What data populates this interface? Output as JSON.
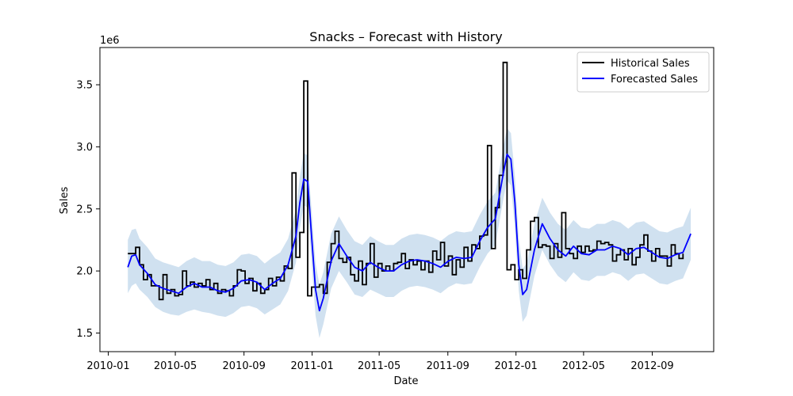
{
  "chart_data": {
    "type": "line",
    "title": "Snacks – Forecast with History",
    "xlabel": "Date",
    "ylabel": "Sales",
    "y_offset_label": "1e6",
    "xlim": [
      "2009-12-17",
      "2012-12-20"
    ],
    "ylim": [
      1.35,
      3.8
    ],
    "x_ticks": [
      {
        "date": "2010-01-01",
        "label": "2010-01"
      },
      {
        "date": "2010-05-01",
        "label": "2010-05"
      },
      {
        "date": "2010-09-01",
        "label": "2010-09"
      },
      {
        "date": "2011-01-01",
        "label": "2011-01"
      },
      {
        "date": "2011-05-01",
        "label": "2011-05"
      },
      {
        "date": "2011-09-01",
        "label": "2011-09"
      },
      {
        "date": "2012-01-01",
        "label": "2012-01"
      },
      {
        "date": "2012-05-01",
        "label": "2012-05"
      },
      {
        "date": "2012-09-01",
        "label": "2012-09"
      }
    ],
    "y_ticks": [
      1.5,
      2.0,
      2.5,
      3.0,
      3.5
    ],
    "legend": {
      "position": "top-right",
      "entries": [
        "Historical Sales",
        "Forecasted Sales"
      ]
    },
    "colors": {
      "historical": "#000000",
      "forecast": "#0000ff",
      "band": "#bcd4ea"
    },
    "series": [
      {
        "name": "Historical Sales",
        "style": "step",
        "x": [
          "2010-02-05",
          "2010-02-12",
          "2010-02-19",
          "2010-02-26",
          "2010-03-05",
          "2010-03-12",
          "2010-03-19",
          "2010-03-26",
          "2010-04-02",
          "2010-04-09",
          "2010-04-16",
          "2010-04-23",
          "2010-04-30",
          "2010-05-07",
          "2010-05-14",
          "2010-05-21",
          "2010-05-28",
          "2010-06-04",
          "2010-06-11",
          "2010-06-18",
          "2010-06-25",
          "2010-07-02",
          "2010-07-09",
          "2010-07-16",
          "2010-07-23",
          "2010-07-30",
          "2010-08-06",
          "2010-08-13",
          "2010-08-20",
          "2010-08-27",
          "2010-09-03",
          "2010-09-10",
          "2010-09-17",
          "2010-09-24",
          "2010-10-01",
          "2010-10-08",
          "2010-10-15",
          "2010-10-22",
          "2010-10-29",
          "2010-11-05",
          "2010-11-12",
          "2010-11-19",
          "2010-11-26",
          "2010-12-03",
          "2010-12-10",
          "2010-12-17",
          "2010-12-24",
          "2010-12-31",
          "2011-01-07",
          "2011-01-14",
          "2011-01-21",
          "2011-01-28",
          "2011-02-04",
          "2011-02-11",
          "2011-02-18",
          "2011-02-25",
          "2011-03-04",
          "2011-03-11",
          "2011-03-18",
          "2011-03-25",
          "2011-04-01",
          "2011-04-08",
          "2011-04-15",
          "2011-04-22",
          "2011-04-29",
          "2011-05-06",
          "2011-05-13",
          "2011-05-20",
          "2011-05-27",
          "2011-06-03",
          "2011-06-10",
          "2011-06-17",
          "2011-06-24",
          "2011-07-01",
          "2011-07-08",
          "2011-07-15",
          "2011-07-22",
          "2011-07-29",
          "2011-08-05",
          "2011-08-12",
          "2011-08-19",
          "2011-08-26",
          "2011-09-02",
          "2011-09-09",
          "2011-09-16",
          "2011-09-23",
          "2011-09-30",
          "2011-10-07",
          "2011-10-14",
          "2011-10-21",
          "2011-10-28",
          "2011-11-04",
          "2011-11-11",
          "2011-11-18",
          "2011-11-25",
          "2011-12-02",
          "2011-12-09",
          "2011-12-16",
          "2011-12-23",
          "2011-12-30",
          "2012-01-06",
          "2012-01-13",
          "2012-01-20",
          "2012-01-27",
          "2012-02-03",
          "2012-02-10",
          "2012-02-17",
          "2012-02-24",
          "2012-03-02",
          "2012-03-09",
          "2012-03-16",
          "2012-03-23",
          "2012-03-30",
          "2012-04-06",
          "2012-04-13",
          "2012-04-20",
          "2012-04-27",
          "2012-05-04",
          "2012-05-11",
          "2012-05-18",
          "2012-05-25",
          "2012-06-01",
          "2012-06-08",
          "2012-06-15",
          "2012-06-22",
          "2012-06-29",
          "2012-07-06",
          "2012-07-13",
          "2012-07-20",
          "2012-07-27",
          "2012-08-03",
          "2012-08-10",
          "2012-08-17",
          "2012-08-24",
          "2012-08-31",
          "2012-09-07",
          "2012-09-14",
          "2012-09-21",
          "2012-09-28",
          "2012-10-05",
          "2012-10-12",
          "2012-10-19",
          "2012-10-26"
        ],
        "values": [
          2.14,
          2.14,
          2.19,
          2.05,
          1.93,
          1.97,
          1.88,
          1.88,
          1.77,
          1.97,
          1.82,
          1.85,
          1.8,
          1.81,
          2.0,
          1.88,
          1.91,
          1.87,
          1.9,
          1.88,
          1.93,
          1.85,
          1.9,
          1.82,
          1.85,
          1.84,
          1.8,
          1.88,
          2.01,
          2.0,
          1.9,
          1.94,
          1.84,
          1.9,
          1.82,
          1.85,
          1.94,
          1.88,
          1.95,
          1.92,
          2.04,
          2.02,
          2.79,
          2.11,
          2.31,
          3.53,
          1.8,
          1.87,
          1.87,
          1.89,
          1.82,
          2.07,
          2.22,
          2.32,
          2.1,
          2.07,
          2.11,
          1.97,
          1.92,
          2.08,
          1.89,
          2.06,
          2.22,
          1.95,
          2.06,
          2.0,
          2.04,
          2.0,
          2.06,
          2.07,
          2.14,
          2.02,
          2.09,
          2.05,
          2.08,
          2.01,
          2.08,
          1.99,
          2.16,
          2.09,
          2.23,
          2.04,
          2.12,
          1.97,
          2.09,
          2.03,
          2.19,
          2.08,
          2.21,
          2.18,
          2.28,
          2.29,
          3.01,
          2.18,
          2.51,
          2.77,
          3.68,
          2.01,
          2.05,
          1.93,
          2.01,
          1.94,
          2.17,
          2.4,
          2.43,
          2.19,
          2.21,
          2.2,
          2.1,
          2.22,
          2.11,
          2.47,
          2.18,
          2.14,
          2.1,
          2.2,
          2.15,
          2.2,
          2.16,
          2.17,
          2.24,
          2.22,
          2.23,
          2.21,
          2.08,
          2.13,
          2.17,
          2.09,
          2.18,
          2.05,
          2.11,
          2.21,
          2.29,
          2.16,
          2.08,
          2.18,
          2.12,
          2.12,
          2.04,
          2.21,
          2.14,
          2.1,
          2.14
        ]
      },
      {
        "name": "Forecasted Sales",
        "style": "line",
        "x": [
          "2010-02-05",
          "2010-02-12",
          "2010-02-19",
          "2010-02-26",
          "2010-03-12",
          "2010-03-26",
          "2010-04-09",
          "2010-04-23",
          "2010-05-07",
          "2010-05-21",
          "2010-06-04",
          "2010-06-18",
          "2010-07-02",
          "2010-07-16",
          "2010-07-30",
          "2010-08-13",
          "2010-08-27",
          "2010-09-10",
          "2010-09-24",
          "2010-10-08",
          "2010-10-22",
          "2010-11-05",
          "2010-11-19",
          "2010-12-03",
          "2010-12-10",
          "2010-12-17",
          "2010-12-24",
          "2010-12-31",
          "2011-01-07",
          "2011-01-14",
          "2011-01-21",
          "2011-02-04",
          "2011-02-18",
          "2011-03-04",
          "2011-03-18",
          "2011-04-01",
          "2011-04-15",
          "2011-04-29",
          "2011-05-13",
          "2011-05-27",
          "2011-06-10",
          "2011-06-24",
          "2011-07-08",
          "2011-07-22",
          "2011-08-05",
          "2011-08-19",
          "2011-09-02",
          "2011-09-16",
          "2011-09-30",
          "2011-10-14",
          "2011-10-28",
          "2011-11-11",
          "2011-11-25",
          "2011-12-09",
          "2011-12-16",
          "2011-12-23",
          "2011-12-30",
          "2012-01-06",
          "2012-01-13",
          "2012-01-20",
          "2012-02-03",
          "2012-02-17",
          "2012-03-02",
          "2012-03-16",
          "2012-03-30",
          "2012-04-13",
          "2012-04-27",
          "2012-05-11",
          "2012-05-25",
          "2012-06-08",
          "2012-06-22",
          "2012-07-06",
          "2012-07-20",
          "2012-08-03",
          "2012-08-17",
          "2012-08-31",
          "2012-09-14",
          "2012-09-28",
          "2012-10-12",
          "2012-10-26",
          "2012-11-09"
        ],
        "values": [
          2.03,
          2.12,
          2.13,
          2.05,
          1.98,
          1.89,
          1.86,
          1.84,
          1.82,
          1.87,
          1.9,
          1.87,
          1.87,
          1.84,
          1.83,
          1.86,
          1.92,
          1.93,
          1.91,
          1.85,
          1.9,
          1.94,
          2.05,
          2.28,
          2.55,
          2.74,
          2.72,
          2.28,
          1.85,
          1.68,
          1.78,
          2.08,
          2.22,
          2.12,
          2.03,
          2.0,
          2.07,
          2.03,
          2.0,
          2.0,
          2.05,
          2.08,
          2.09,
          2.08,
          2.06,
          2.03,
          2.08,
          2.11,
          2.1,
          2.11,
          2.24,
          2.35,
          2.42,
          2.78,
          2.94,
          2.9,
          2.55,
          2.05,
          1.81,
          1.85,
          2.17,
          2.38,
          2.26,
          2.17,
          2.12,
          2.2,
          2.14,
          2.13,
          2.17,
          2.17,
          2.2,
          2.18,
          2.13,
          2.18,
          2.19,
          2.15,
          2.11,
          2.1,
          2.13,
          2.15,
          2.3
        ],
        "lower": [
          1.82,
          1.88,
          1.9,
          1.85,
          1.79,
          1.71,
          1.67,
          1.65,
          1.64,
          1.67,
          1.69,
          1.67,
          1.66,
          1.64,
          1.63,
          1.66,
          1.71,
          1.72,
          1.7,
          1.65,
          1.69,
          1.73,
          1.84,
          2.07,
          2.34,
          2.53,
          2.51,
          2.07,
          1.64,
          1.46,
          1.57,
          1.86,
          2.0,
          1.91,
          1.81,
          1.79,
          1.85,
          1.82,
          1.79,
          1.79,
          1.84,
          1.87,
          1.88,
          1.87,
          1.85,
          1.82,
          1.87,
          1.9,
          1.89,
          1.9,
          2.03,
          2.14,
          2.21,
          2.57,
          2.73,
          2.69,
          2.34,
          1.84,
          1.59,
          1.64,
          1.96,
          2.17,
          2.05,
          1.96,
          1.91,
          1.99,
          1.93,
          1.92,
          1.96,
          1.96,
          1.99,
          1.97,
          1.92,
          1.97,
          1.98,
          1.94,
          1.9,
          1.89,
          1.92,
          1.94,
          2.09
        ],
        "upper": [
          2.25,
          2.33,
          2.34,
          2.26,
          2.19,
          2.1,
          2.07,
          2.05,
          2.03,
          2.08,
          2.11,
          2.08,
          2.08,
          2.05,
          2.04,
          2.07,
          2.13,
          2.14,
          2.12,
          2.06,
          2.11,
          2.15,
          2.26,
          2.49,
          2.76,
          2.95,
          2.93,
          2.49,
          2.06,
          1.89,
          1.99,
          2.3,
          2.44,
          2.33,
          2.24,
          2.21,
          2.28,
          2.24,
          2.21,
          2.21,
          2.26,
          2.29,
          2.3,
          2.29,
          2.27,
          2.24,
          2.29,
          2.32,
          2.31,
          2.32,
          2.45,
          2.56,
          2.63,
          2.99,
          3.15,
          3.11,
          2.76,
          2.26,
          2.02,
          2.06,
          2.38,
          2.59,
          2.47,
          2.38,
          2.33,
          2.41,
          2.35,
          2.34,
          2.38,
          2.38,
          2.41,
          2.39,
          2.34,
          2.39,
          2.4,
          2.36,
          2.32,
          2.31,
          2.34,
          2.36,
          2.51
        ]
      }
    ]
  }
}
